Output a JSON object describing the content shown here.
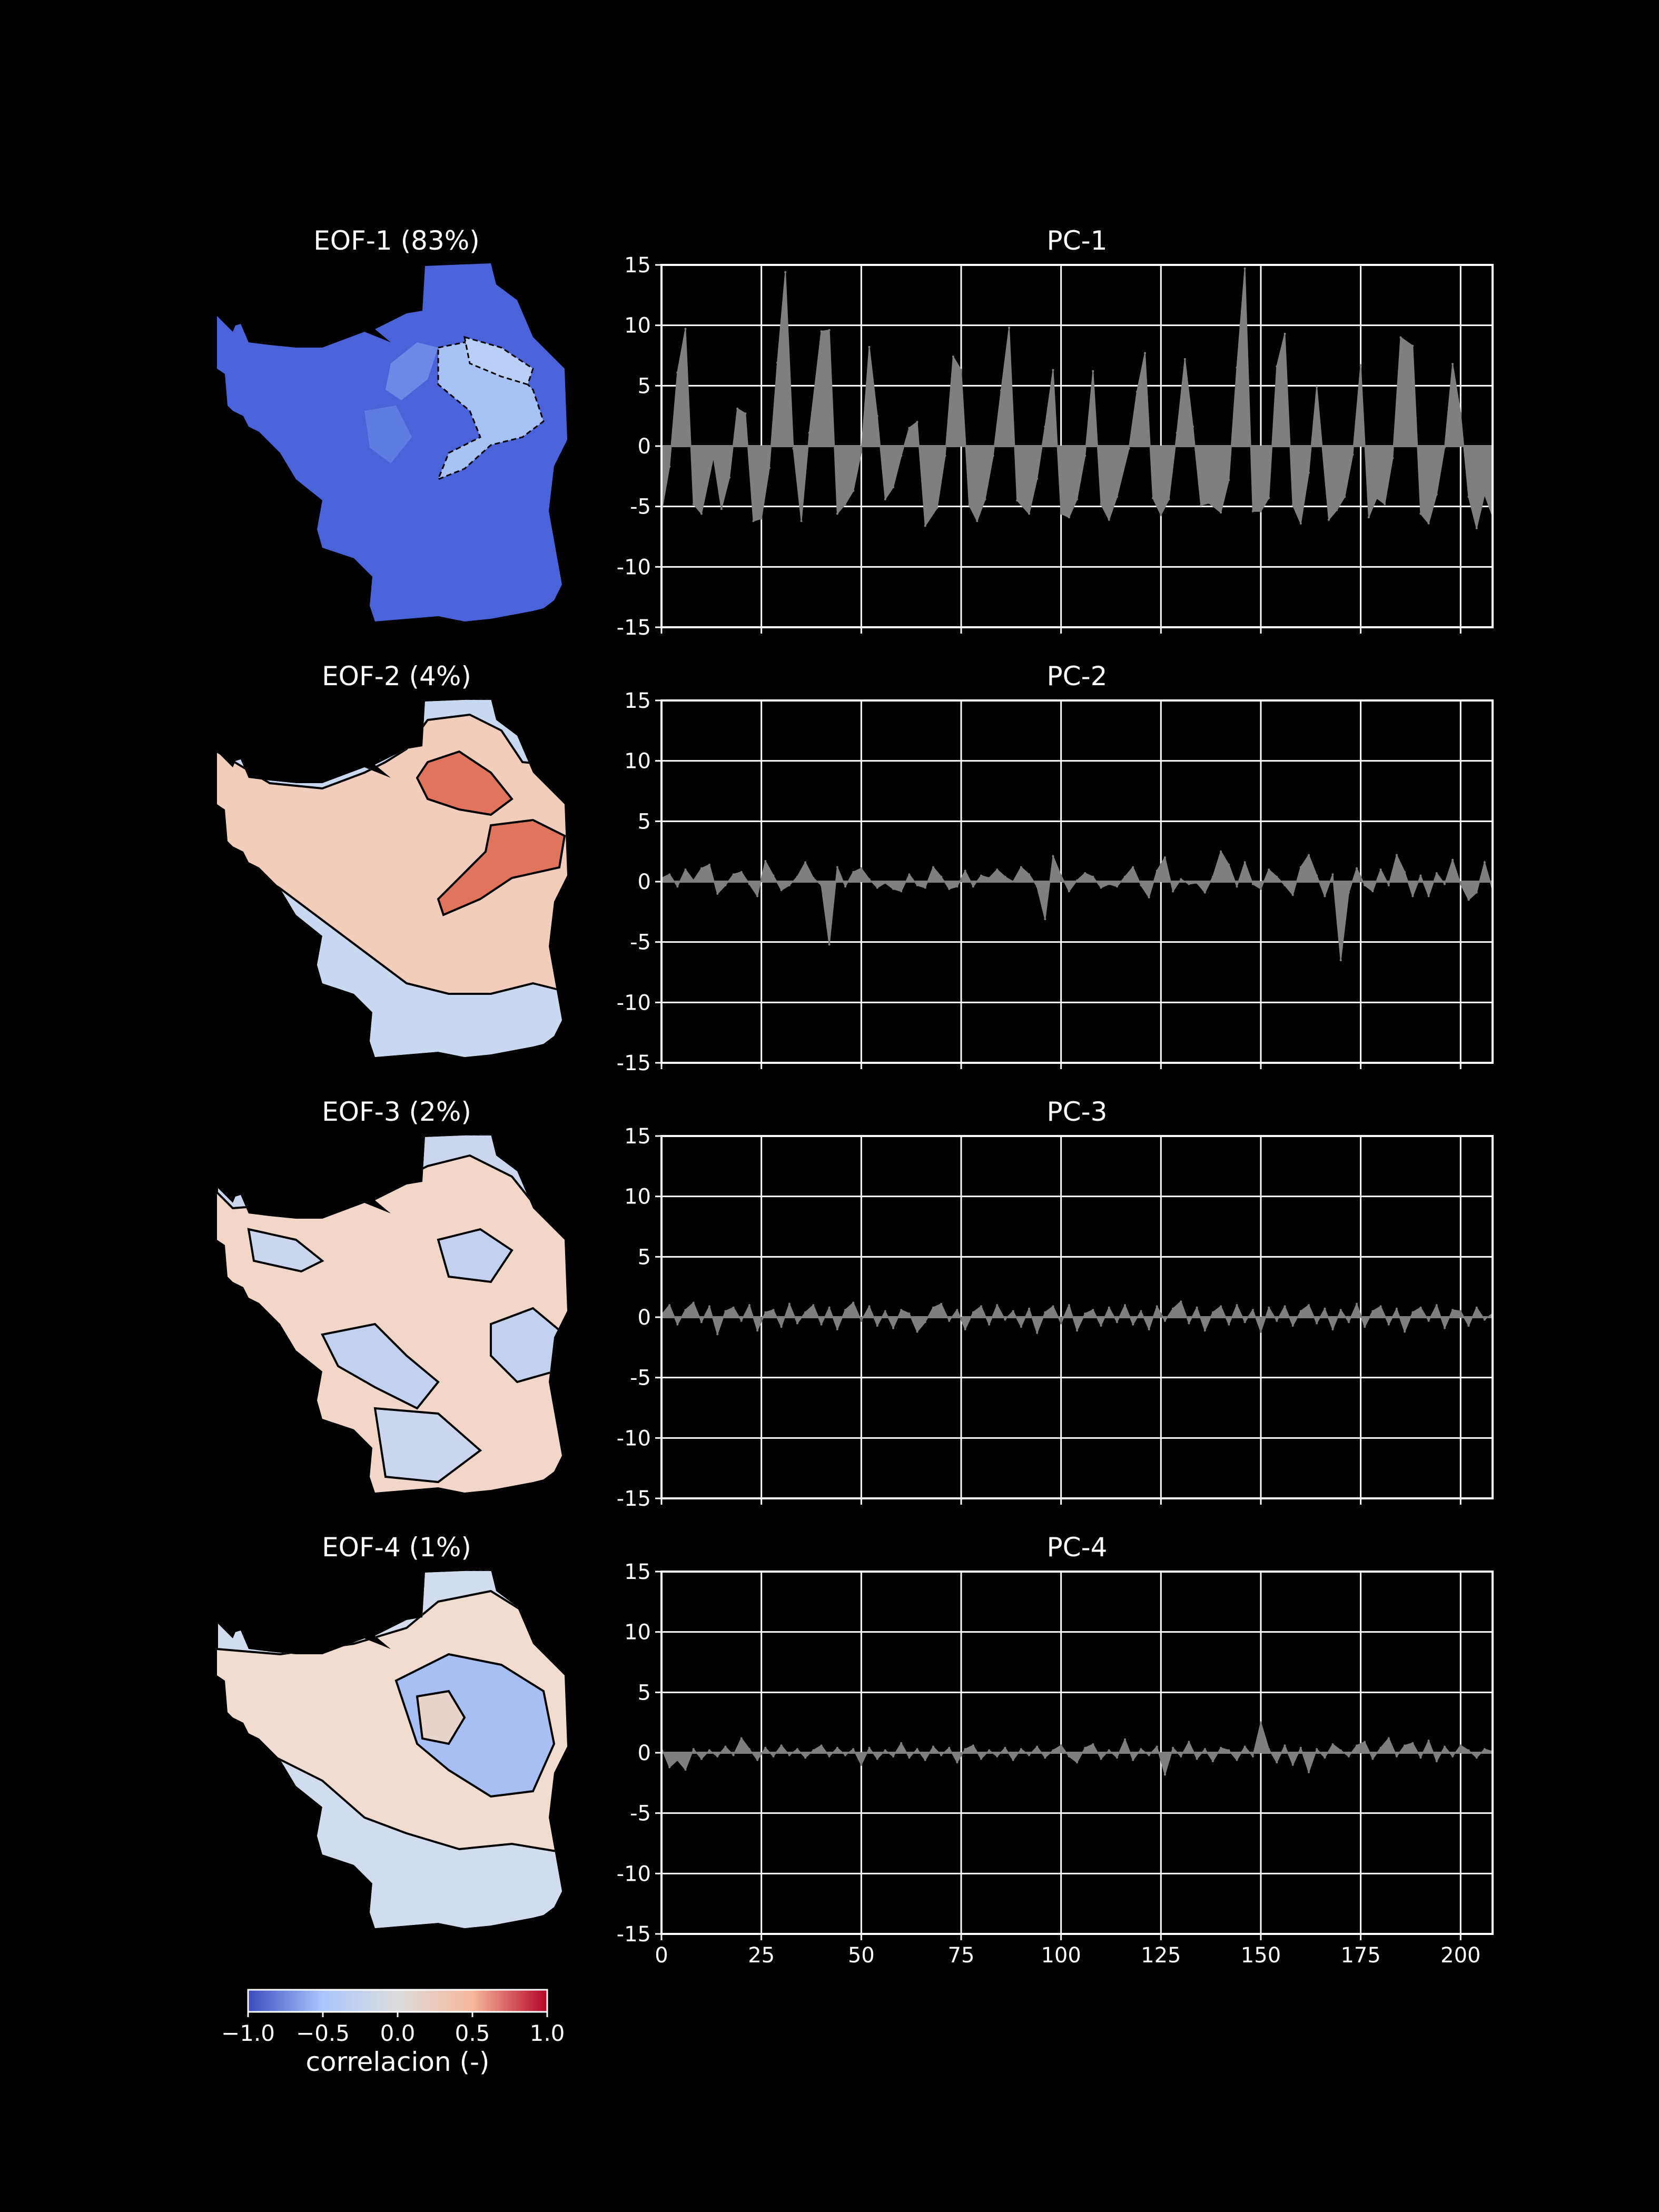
{
  "chart_data": [
    {
      "type": "heatmap",
      "title": "EOF-1 (83%)",
      "mean_value": -0.9
    },
    {
      "type": "heatmap",
      "title": "EOF-2 (4%)",
      "mean_value": 0.2
    },
    {
      "type": "heatmap",
      "title": "EOF-3 (2%)",
      "mean_value": 0.02
    },
    {
      "type": "heatmap",
      "title": "EOF-4 (1%)",
      "mean_value": 0.05
    },
    {
      "type": "area",
      "title": "PC-1",
      "xlim": [
        0,
        208
      ],
      "ylim": [
        -15,
        15
      ],
      "xticks": [
        0,
        25,
        50,
        75,
        100,
        125,
        150,
        175,
        200
      ],
      "yticks": [
        -15,
        -10,
        -5,
        0,
        5,
        10,
        15
      ],
      "grid": true,
      "show_xticklabels": false,
      "x": [
        0,
        2,
        4,
        6,
        8,
        10,
        13,
        15,
        17,
        19,
        21,
        23,
        25,
        27,
        29,
        31,
        33,
        35,
        37,
        40,
        42,
        44,
        46,
        48,
        50,
        52,
        54,
        56,
        58,
        60,
        62,
        64,
        66,
        69,
        71,
        73,
        75,
        77,
        79,
        81,
        83,
        85,
        87,
        89,
        92,
        94,
        96,
        98,
        100,
        102,
        104,
        106,
        108,
        110,
        112,
        114,
        117,
        119,
        121,
        123,
        125,
        127,
        129,
        131,
        133,
        135,
        137,
        140,
        142,
        144,
        146,
        148,
        150,
        152,
        154,
        156,
        158,
        160,
        162,
        164,
        167,
        169,
        171,
        173,
        175,
        177,
        179,
        181,
        183,
        185,
        188,
        190,
        192,
        194,
        196,
        198,
        200,
        202,
        204,
        206,
        208
      ],
      "values": [
        -5.5,
        -1.7,
        6.1,
        9.7,
        -4.8,
        -5.6,
        -0.9,
        -5.2,
        -2.6,
        3.1,
        2.7,
        -6.2,
        -6.0,
        -1.8,
        6.9,
        14.4,
        -0.2,
        -6.2,
        1.1,
        9.5,
        9.6,
        -5.6,
        -4.8,
        -3.7,
        -0.5,
        8.2,
        2.5,
        -4.4,
        -3.4,
        -0.8,
        1.5,
        2.0,
        -6.6,
        -5.1,
        -0.8,
        7.4,
        6.3,
        -4.9,
        -6.2,
        -4.4,
        -0.8,
        4.6,
        9.8,
        -4.5,
        -5.6,
        -2.7,
        1.6,
        6.3,
        -5.6,
        -5.9,
        -4.4,
        -0.8,
        6.2,
        -4.8,
        -6.1,
        -4.2,
        -0.2,
        4.5,
        7.7,
        -4.3,
        -5.7,
        -4.4,
        1.1,
        7.2,
        1.6,
        -4.9,
        -4.7,
        -5.5,
        -2.8,
        6.5,
        14.7,
        -5.4,
        -5.4,
        -4.3,
        6.6,
        9.3,
        -4.9,
        -6.4,
        -2.2,
        4.9,
        -6.1,
        -5.3,
        -4.2,
        -0.7,
        6.7,
        -5.9,
        -4.3,
        -4.8,
        -1.0,
        9.0,
        8.3,
        -5.6,
        -6.4,
        -4.0,
        -0.1,
        6.8,
        2.7,
        -4.2,
        -6.8,
        -4.0,
        -5.8
      ]
    },
    {
      "type": "area",
      "title": "PC-2",
      "xlim": [
        0,
        208
      ],
      "ylim": [
        -15,
        15
      ],
      "xticks": [
        0,
        25,
        50,
        75,
        100,
        125,
        150,
        175,
        200
      ],
      "yticks": [
        -15,
        -10,
        -5,
        0,
        5,
        10,
        15
      ],
      "grid": true,
      "show_xticklabels": false,
      "x": [
        0,
        2,
        4,
        6,
        8,
        10,
        12,
        14,
        16,
        18,
        20,
        22,
        24,
        26,
        28,
        30,
        32,
        34,
        36,
        38,
        40,
        42,
        44,
        46,
        48,
        50,
        52,
        54,
        56,
        58,
        60,
        62,
        64,
        66,
        68,
        70,
        72,
        74,
        76,
        78,
        80,
        82,
        84,
        86,
        88,
        90,
        92,
        94,
        96,
        98,
        100,
        102,
        104,
        106,
        108,
        110,
        112,
        114,
        116,
        118,
        120,
        122,
        124,
        126,
        128,
        130,
        132,
        134,
        136,
        138,
        140,
        142,
        144,
        146,
        148,
        150,
        152,
        154,
        156,
        158,
        160,
        162,
        164,
        166,
        168,
        170,
        172,
        174,
        176,
        178,
        180,
        182,
        184,
        186,
        188,
        190,
        192,
        194,
        196,
        198,
        200,
        202,
        204,
        206,
        208
      ],
      "values": [
        0.3,
        0.6,
        -0.4,
        1.0,
        0.1,
        1.1,
        1.4,
        -1.0,
        -0.3,
        0.6,
        0.8,
        -0.2,
        -1.2,
        1.7,
        0.5,
        -0.7,
        -0.3,
        0.4,
        1.6,
        0.3,
        -0.3,
        -5.2,
        1.2,
        -0.4,
        0.8,
        1.1,
        0.2,
        -0.5,
        -0.1,
        -0.6,
        -0.8,
        0.6,
        -0.3,
        -0.5,
        1.2,
        0.4,
        -0.6,
        -0.4,
        0.9,
        -0.4,
        0.5,
        0.3,
        1.0,
        0.4,
        0.0,
        1.2,
        0.6,
        -0.4,
        -3.1,
        2.1,
        0.5,
        -0.8,
        0.1,
        0.7,
        0.4,
        -0.5,
        -0.2,
        -0.4,
        0.4,
        1.2,
        -0.3,
        -1.3,
        0.9,
        2.0,
        -0.8,
        0.2,
        -0.2,
        -0.1,
        -0.9,
        0.4,
        2.5,
        1.4,
        -0.4,
        1.6,
        -0.2,
        -0.6,
        1.0,
        0.4,
        -0.3,
        -1.1,
        1.2,
        2.2,
        0.5,
        -1.2,
        0.6,
        -6.5,
        -0.9,
        1.1,
        -0.3,
        -0.8,
        1.0,
        -0.3,
        2.2,
        0.8,
        -1.2,
        0.5,
        -1.2,
        0.7,
        -0.2,
        1.8,
        -0.2,
        -1.5,
        -0.9,
        1.6,
        -0.7
      ]
    },
    {
      "type": "area",
      "title": "PC-3",
      "xlim": [
        0,
        208
      ],
      "ylim": [
        -15,
        15
      ],
      "xticks": [
        0,
        25,
        50,
        75,
        100,
        125,
        150,
        175,
        200
      ],
      "yticks": [
        -15,
        -10,
        -5,
        0,
        5,
        10,
        15
      ],
      "grid": true,
      "show_xticklabels": false,
      "x": [
        0,
        2,
        4,
        6,
        8,
        10,
        12,
        14,
        16,
        18,
        20,
        22,
        24,
        26,
        28,
        30,
        32,
        34,
        36,
        38,
        40,
        42,
        44,
        46,
        48,
        50,
        52,
        54,
        56,
        58,
        60,
        62,
        64,
        66,
        68,
        70,
        72,
        74,
        76,
        78,
        80,
        82,
        84,
        86,
        88,
        90,
        92,
        94,
        96,
        98,
        100,
        102,
        104,
        106,
        108,
        110,
        112,
        114,
        116,
        118,
        120,
        122,
        124,
        126,
        128,
        130,
        132,
        134,
        136,
        138,
        140,
        142,
        144,
        146,
        148,
        150,
        152,
        154,
        156,
        158,
        160,
        162,
        164,
        166,
        168,
        170,
        172,
        174,
        176,
        178,
        180,
        182,
        184,
        186,
        188,
        190,
        192,
        194,
        196,
        198,
        200,
        202,
        204,
        206,
        208
      ],
      "values": [
        0.2,
        1.0,
        -0.6,
        0.6,
        1.2,
        -0.4,
        0.9,
        -1.4,
        0.5,
        0.8,
        -0.3,
        1.0,
        -1.1,
        0.4,
        0.6,
        -0.8,
        1.1,
        -0.5,
        0.4,
        1.0,
        -0.6,
        0.8,
        -1.0,
        0.6,
        1.2,
        -0.3,
        0.9,
        -0.7,
        0.5,
        -0.9,
        0.6,
        0.3,
        -1.2,
        -0.4,
        0.8,
        1.1,
        -0.3,
        0.6,
        -1.0,
        0.4,
        0.9,
        -0.6,
        1.0,
        -0.2,
        0.5,
        -0.8,
        0.7,
        -1.3,
        0.4,
        0.9,
        -0.5,
        1.0,
        -1.1,
        0.3,
        0.6,
        -0.7,
        0.8,
        -0.4,
        1.0,
        -0.6,
        0.5,
        -1.0,
        0.9,
        -0.3,
        0.7,
        1.3,
        -0.5,
        0.8,
        -1.1,
        0.4,
        0.9,
        -0.6,
        1.0,
        -0.4,
        0.6,
        -1.2,
        0.8,
        -0.3,
        0.9,
        -0.7,
        0.5,
        1.0,
        -0.5,
        0.7,
        -1.0,
        0.6,
        -0.4,
        1.1,
        -0.8,
        0.5,
        0.9,
        -0.6,
        0.7,
        -1.2,
        0.4,
        0.8,
        -0.3,
        1.0,
        -0.9,
        0.6,
        0.5,
        -0.7,
        0.8,
        -0.2,
        0.3
      ]
    },
    {
      "type": "area",
      "title": "PC-4",
      "xlim": [
        0,
        208
      ],
      "ylim": [
        -15,
        15
      ],
      "xticks": [
        0,
        25,
        50,
        75,
        100,
        125,
        150,
        175,
        200
      ],
      "yticks": [
        -15,
        -10,
        -5,
        0,
        5,
        10,
        15
      ],
      "grid": true,
      "show_xticklabels": true,
      "x": [
        0,
        2,
        4,
        6,
        8,
        10,
        12,
        14,
        16,
        18,
        20,
        22,
        24,
        26,
        28,
        30,
        32,
        34,
        36,
        38,
        40,
        42,
        44,
        46,
        48,
        50,
        52,
        54,
        56,
        58,
        60,
        62,
        64,
        66,
        68,
        70,
        72,
        74,
        76,
        78,
        80,
        82,
        84,
        86,
        88,
        90,
        92,
        94,
        96,
        98,
        100,
        102,
        104,
        106,
        108,
        110,
        112,
        114,
        116,
        118,
        120,
        122,
        124,
        126,
        128,
        130,
        132,
        134,
        136,
        138,
        140,
        142,
        144,
        146,
        148,
        150,
        152,
        154,
        156,
        158,
        160,
        162,
        164,
        166,
        168,
        170,
        172,
        174,
        176,
        178,
        180,
        182,
        184,
        186,
        188,
        190,
        192,
        194,
        196,
        198,
        200,
        202,
        204,
        206,
        208
      ],
      "values": [
        0.4,
        -1.2,
        -0.6,
        -1.4,
        0.3,
        -0.5,
        0.2,
        -0.3,
        0.5,
        -0.2,
        1.2,
        0.3,
        -0.6,
        0.4,
        -0.3,
        0.6,
        -0.2,
        0.3,
        -0.4,
        0.2,
        0.6,
        -0.3,
        0.4,
        -0.2,
        0.3,
        -1.0,
        0.4,
        -0.5,
        0.2,
        -0.3,
        0.8,
        -0.4,
        0.3,
        -0.6,
        0.5,
        -0.2,
        0.4,
        -0.8,
        0.3,
        0.6,
        -0.5,
        0.2,
        -0.3,
        0.4,
        -0.6,
        0.3,
        -0.2,
        0.5,
        -0.4,
        0.2,
        0.6,
        -0.3,
        -0.8,
        0.4,
        0.7,
        -0.5,
        0.2,
        -0.4,
        1.1,
        -0.6,
        0.3,
        -0.2,
        0.5,
        -1.8,
        0.4,
        -0.3,
        0.9,
        -0.5,
        0.3,
        -0.7,
        0.4,
        0.2,
        -0.6,
        0.5,
        -0.3,
        2.5,
        0.3,
        -0.8,
        0.6,
        -1.0,
        0.4,
        -1.6,
        0.3,
        -0.4,
        0.7,
        0.2,
        -0.3,
        0.6,
        0.9,
        -0.5,
        0.4,
        1.2,
        -0.3,
        0.6,
        0.8,
        -0.4,
        1.0,
        -0.7,
        0.5,
        -0.3,
        0.6,
        0.2,
        -0.4,
        0.3,
        0.1
      ]
    }
  ],
  "colorbar": {
    "label": "correlacion (-)",
    "ticks": [
      "−1.0",
      "−0.5",
      "0.0",
      "0.5",
      "1.0"
    ],
    "range": [
      -1,
      1
    ],
    "colors": [
      "#3b4cc0",
      "#aac7fd",
      "#dddddd",
      "#f7b89c",
      "#b40426"
    ]
  },
  "style": {
    "background": "#000000",
    "fill_color": "#7f7f7f",
    "axes_color": "#ffffff"
  }
}
